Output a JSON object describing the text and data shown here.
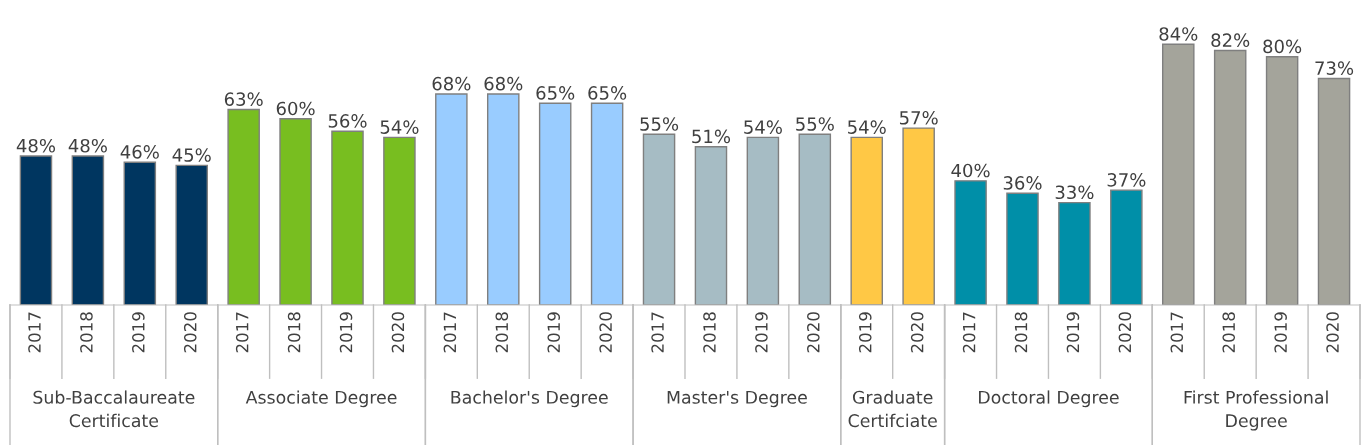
{
  "chart_data": {
    "type": "bar",
    "categories": [
      "2017",
      "2018",
      "2019",
      "2020",
      "2017",
      "2018",
      "2019",
      "2020",
      "2017",
      "2018",
      "2019",
      "2020",
      "2017",
      "2018",
      "2019",
      "2020",
      "2019",
      "2020",
      "2017",
      "2018",
      "2019",
      "2020",
      "2017",
      "2018",
      "2019",
      "2020"
    ],
    "series": [
      {
        "color": "#003660",
        "values": [
          48,
          48,
          46,
          45,
          null,
          null,
          null,
          null,
          null,
          null,
          null,
          null,
          null,
          null,
          null,
          null,
          null,
          null,
          null,
          null,
          null,
          null,
          null,
          null,
          null,
          null
        ],
        "value_labels": [
          "48%",
          "48%",
          "46%",
          "45%",
          null,
          null,
          null,
          null,
          null,
          null,
          null,
          null,
          null,
          null,
          null,
          null,
          null,
          null,
          null,
          null,
          null,
          null,
          null,
          null,
          null,
          null
        ]
      },
      {
        "color": "#78be20",
        "values": [
          null,
          null,
          null,
          null,
          63,
          60,
          56,
          54,
          null,
          null,
          null,
          null,
          null,
          null,
          null,
          null,
          null,
          null,
          null,
          null,
          null,
          null,
          null,
          null,
          null,
          null
        ],
        "value_labels": [
          null,
          null,
          null,
          null,
          "63%",
          "60%",
          "56%",
          "54%",
          null,
          null,
          null,
          null,
          null,
          null,
          null,
          null,
          null,
          null,
          null,
          null,
          null,
          null,
          null,
          null,
          null,
          null
        ]
      },
      {
        "color": "#99ccff",
        "values": [
          null,
          null,
          null,
          null,
          null,
          null,
          null,
          null,
          68,
          68,
          65,
          65,
          null,
          null,
          null,
          null,
          null,
          null,
          null,
          null,
          null,
          null,
          null,
          null,
          null,
          null
        ],
        "value_labels": [
          null,
          null,
          null,
          null,
          null,
          null,
          null,
          null,
          "68%",
          "68%",
          "65%",
          "65%",
          null,
          null,
          null,
          null,
          null,
          null,
          null,
          null,
          null,
          null,
          null,
          null,
          null,
          null
        ]
      },
      {
        "color": "#a6bcc4",
        "values": [
          null,
          null,
          null,
          null,
          null,
          null,
          null,
          null,
          null,
          null,
          null,
          null,
          55,
          51,
          54,
          55,
          null,
          null,
          null,
          null,
          null,
          null,
          null,
          null,
          null,
          null
        ],
        "value_labels": [
          null,
          null,
          null,
          null,
          null,
          null,
          null,
          null,
          null,
          null,
          null,
          null,
          "55%",
          "51%",
          "54%",
          "55%",
          null,
          null,
          null,
          null,
          null,
          null,
          null,
          null,
          null,
          null
        ]
      },
      {
        "color": "#ffc845",
        "values": [
          null,
          null,
          null,
          null,
          null,
          null,
          null,
          null,
          null,
          null,
          null,
          null,
          null,
          null,
          null,
          null,
          54,
          57,
          null,
          null,
          null,
          null,
          null,
          null,
          null,
          null
        ],
        "value_labels": [
          null,
          null,
          null,
          null,
          null,
          null,
          null,
          null,
          null,
          null,
          null,
          null,
          null,
          null,
          null,
          null,
          "54%",
          "57%",
          null,
          null,
          null,
          null,
          null,
          null,
          null,
          null
        ]
      },
      {
        "color": "#008fa8",
        "values": [
          null,
          null,
          null,
          null,
          null,
          null,
          null,
          null,
          null,
          null,
          null,
          null,
          null,
          null,
          null,
          null,
          null,
          null,
          40,
          36,
          33,
          37,
          null,
          null,
          null,
          null
        ],
        "value_labels": [
          null,
          null,
          null,
          null,
          null,
          null,
          null,
          null,
          null,
          null,
          null,
          null,
          null,
          null,
          null,
          null,
          null,
          null,
          "40%",
          "36%",
          "33%",
          "37%",
          null,
          null,
          null,
          null
        ]
      },
      {
        "color": "#a4a49b",
        "values": [
          null,
          null,
          null,
          null,
          null,
          null,
          null,
          null,
          null,
          null,
          null,
          null,
          null,
          null,
          null,
          null,
          null,
          null,
          null,
          null,
          null,
          null,
          84,
          82,
          80,
          73
        ],
        "value_labels": [
          null,
          null,
          null,
          null,
          null,
          null,
          null,
          null,
          null,
          null,
          null,
          null,
          null,
          null,
          null,
          null,
          null,
          null,
          null,
          null,
          null,
          null,
          "84%",
          "82%",
          "80%",
          "73%"
        ]
      }
    ],
    "annotations": [
      "Sub-Baccalaureate\nCertificate",
      "Associate Degree",
      "Bachelor's Degree",
      "Master's Degree",
      "Graduate\nCertifciate",
      "Doctoral Degree",
      "First Professional\nDegree"
    ]
  }
}
